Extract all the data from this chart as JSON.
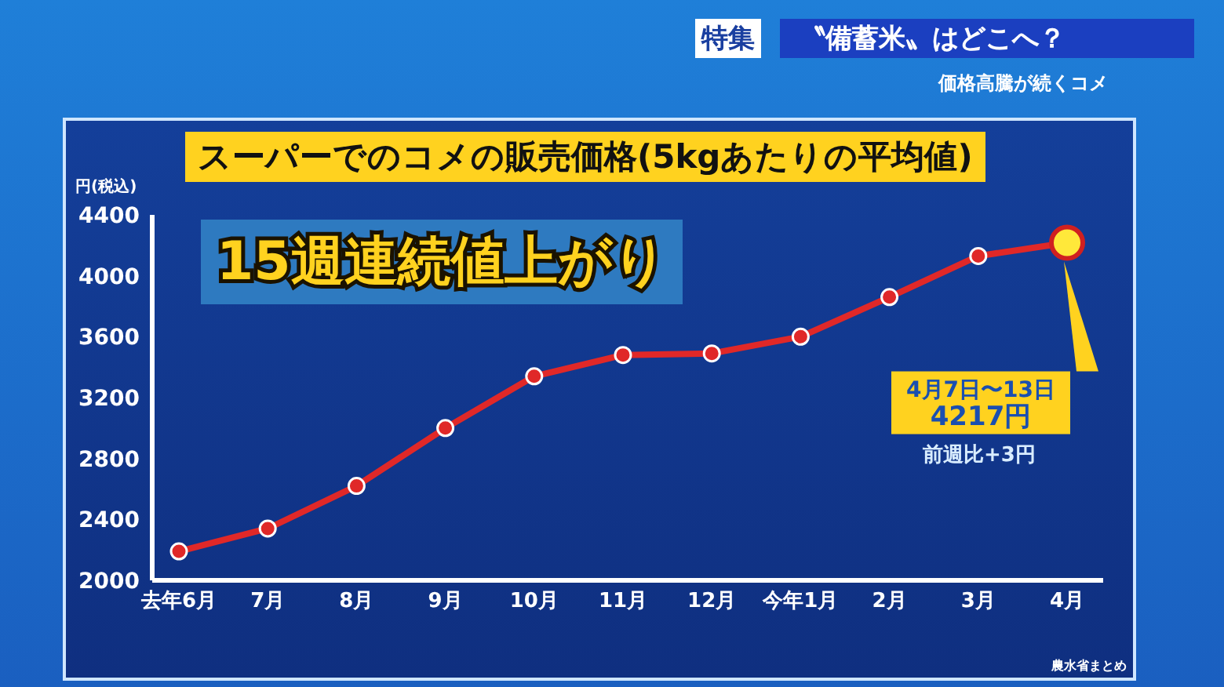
{
  "chart_data": {
    "type": "line",
    "title": "スーパーでのコメの販売価格(5kgあたりの平均値)",
    "ylabel": "円(税込)",
    "categories": [
      "去年6月",
      "7月",
      "8月",
      "9月",
      "10月",
      "11月",
      "12月",
      "今年1月",
      "2月",
      "3月",
      "4月"
    ],
    "series": [
      {
        "color": "#e02828",
        "values": [
          2190,
          2340,
          2620,
          3000,
          3340,
          3480,
          3490,
          3600,
          3860,
          4130,
          4217
        ],
        "value_labels": [
          null,
          null,
          null,
          null,
          null,
          null,
          null,
          null,
          null,
          null,
          "4月7日〜13日\n4217円"
        ]
      }
    ],
    "ylim": [
      2000,
      4400
    ],
    "yticks": [
      2000,
      2400,
      2800,
      3200,
      3600,
      4000,
      4400
    ],
    "grid": false,
    "legend": false,
    "marker": "circle",
    "line_style": "solid",
    "annotations": [
      "特集",
      "〝備蓄米〟はどこへ？",
      "価格高騰が続くコメ",
      "15週連続値上がり",
      "前週比+3円",
      "農水省まとめ"
    ]
  }
}
